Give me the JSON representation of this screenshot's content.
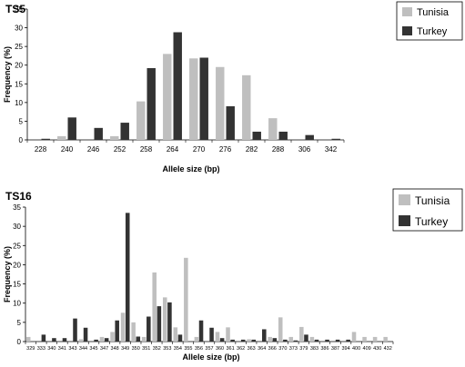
{
  "chart_data": [
    {
      "type": "bar",
      "title": "TS5",
      "xlabel": "Allele size (bp)",
      "ylabel": "Frequency (%)",
      "ylim": [
        0,
        35
      ],
      "yticks": [
        0,
        5,
        10,
        15,
        20,
        25,
        30,
        35
      ],
      "grid": false,
      "legend": "top-right",
      "categories": [
        "228",
        "240",
        "246",
        "252",
        "258",
        "264",
        "270",
        "276",
        "282",
        "288",
        "306",
        "342"
      ],
      "series": [
        {
          "name": "Tunisia",
          "color": "#bfbfbf",
          "values": [
            0,
            1.0,
            0,
            1.0,
            10.3,
            23.0,
            21.8,
            19.5,
            17.3,
            5.8,
            0,
            0
          ]
        },
        {
          "name": "Turkey",
          "color": "#333333",
          "values": [
            0.3,
            6.0,
            3.2,
            4.6,
            19.2,
            28.8,
            22.0,
            9.0,
            2.2,
            2.2,
            1.3,
            0.3
          ]
        }
      ]
    },
    {
      "type": "bar",
      "title": "TS16",
      "xlabel": "Allele size (bp)",
      "ylabel": "Frequency (%)",
      "ylim": [
        0,
        35
      ],
      "yticks": [
        0,
        5,
        10,
        15,
        20,
        25,
        30,
        35
      ],
      "grid": false,
      "legend": "top-right",
      "categories": [
        "329",
        "333",
        "340",
        "341",
        "343",
        "344",
        "345",
        "347",
        "348",
        "349",
        "350",
        "351",
        "352",
        "353",
        "354",
        "355",
        "356",
        "357",
        "360",
        "361",
        "362",
        "363",
        "364",
        "366",
        "370",
        "373",
        "379",
        "383",
        "386",
        "387",
        "394",
        "400",
        "409",
        "430",
        "432"
      ],
      "series": [
        {
          "name": "Tunisia",
          "color": "#bfbfbf",
          "values": [
            1.2,
            0,
            0,
            0,
            0,
            0.6,
            0,
            1.2,
            2.5,
            7.5,
            5.0,
            1.2,
            18.0,
            11.5,
            3.7,
            21.8,
            1.2,
            0,
            2.5,
            3.7,
            0,
            0.6,
            0,
            1.2,
            6.3,
            1.2,
            3.8,
            1.2,
            0,
            0,
            0,
            2.5,
            1.2,
            1.2,
            1.2
          ]
        },
        {
          "name": "Turkey",
          "color": "#333333",
          "values": [
            0,
            1.8,
            0.9,
            0.9,
            6.0,
            3.6,
            0.5,
            0.9,
            5.5,
            33.5,
            1.3,
            6.5,
            9.2,
            10.2,
            1.8,
            0,
            5.5,
            3.6,
            0.9,
            0.5,
            0.5,
            0.5,
            3.2,
            0.9,
            0.5,
            0.3,
            1.8,
            0.5,
            0.5,
            0.5,
            0.5,
            0,
            0,
            0,
            0
          ]
        }
      ]
    }
  ]
}
